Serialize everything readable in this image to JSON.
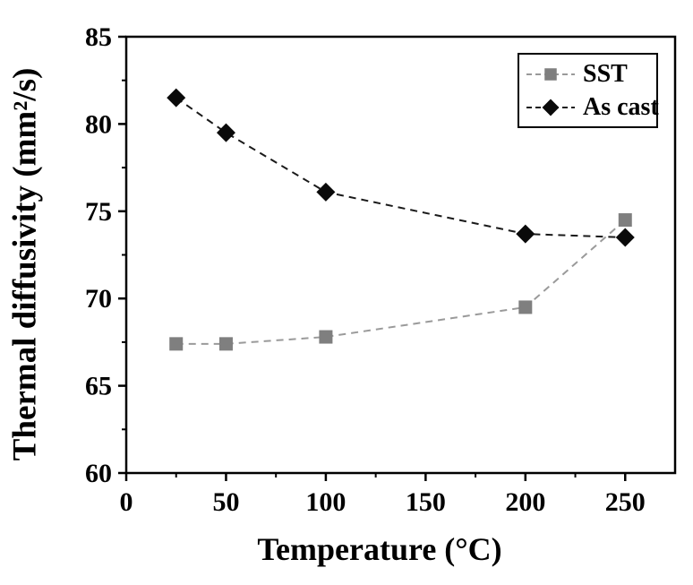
{
  "chart_data": {
    "type": "line",
    "title": "",
    "xlabel": "Temperature (°C)",
    "ylabel": "Thermal diffusivity (mm²/s)",
    "xlim": [
      0,
      275
    ],
    "ylim": [
      60,
      85
    ],
    "x_major_ticks": [
      0,
      50,
      100,
      150,
      200,
      250
    ],
    "x_minor_ticks": [
      25,
      75,
      125,
      175,
      225
    ],
    "y_major_ticks": [
      60,
      65,
      70,
      75,
      80,
      85
    ],
    "y_minor_ticks": [
      62.5,
      67.5,
      72.5,
      77.5,
      82.5
    ],
    "grid": false,
    "line_style": "dashed",
    "legend_position": "top-right",
    "x": [
      25,
      50,
      100,
      200,
      250
    ],
    "series": [
      {
        "name": "SST",
        "marker": "square",
        "marker_color": "#7f7f7f",
        "line_color": "#9a9a9a",
        "values": [
          67.4,
          67.4,
          67.8,
          69.5,
          74.5
        ]
      },
      {
        "name": "As cast",
        "marker": "diamond",
        "marker_color": "#0a0a0a",
        "line_color": "#1a1a1a",
        "values": [
          81.5,
          79.5,
          76.1,
          73.7,
          73.5
        ]
      }
    ],
    "colors": {
      "axis": "#000000",
      "background": "#ffffff",
      "text": "#000000"
    }
  }
}
